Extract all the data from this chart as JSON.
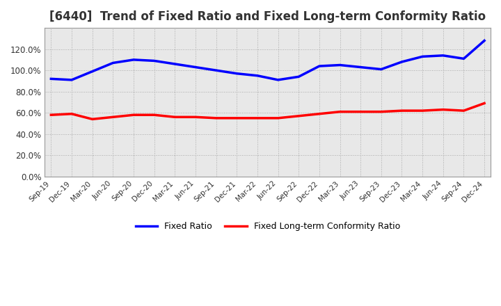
{
  "title": "[6440]  Trend of Fixed Ratio and Fixed Long-term Conformity Ratio",
  "title_fontsize": 12,
  "x_labels": [
    "Sep-19",
    "Dec-19",
    "Mar-20",
    "Jun-20",
    "Sep-20",
    "Dec-20",
    "Mar-21",
    "Jun-21",
    "Sep-21",
    "Dec-21",
    "Mar-22",
    "Jun-22",
    "Sep-22",
    "Dec-22",
    "Mar-23",
    "Jun-23",
    "Sep-23",
    "Dec-23",
    "Mar-24",
    "Jun-24",
    "Sep-24",
    "Dec-24"
  ],
  "fixed_ratio": [
    92,
    91,
    99,
    107,
    110,
    109,
    106,
    103,
    100,
    97,
    95,
    91,
    94,
    104,
    105,
    103,
    101,
    108,
    113,
    114,
    111,
    128
  ],
  "fixed_lt_ratio": [
    58,
    59,
    54,
    56,
    58,
    58,
    56,
    56,
    55,
    55,
    55,
    55,
    57,
    59,
    61,
    61,
    61,
    62,
    62,
    63,
    62,
    69
  ],
  "fixed_ratio_color": "#0000FF",
  "fixed_lt_ratio_color": "#FF0000",
  "ylim": [
    0,
    140
  ],
  "yticks": [
    0,
    20,
    40,
    60,
    80,
    100,
    120
  ],
  "grid_color": "#AAAAAA",
  "plot_bg_color": "#E8E8E8",
  "background_color": "#FFFFFF",
  "legend_labels": [
    "Fixed Ratio",
    "Fixed Long-term Conformity Ratio"
  ],
  "line_width": 2.5
}
